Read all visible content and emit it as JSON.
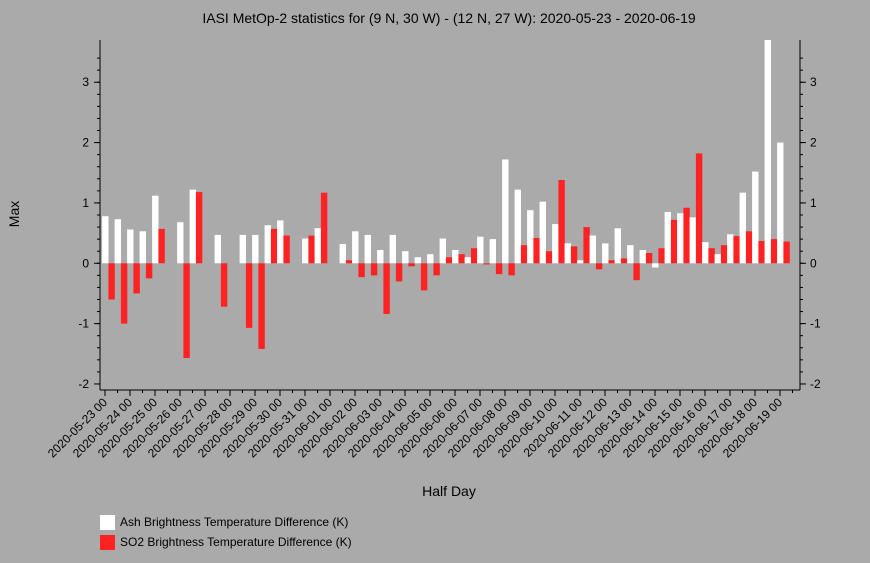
{
  "chart_data": {
    "type": "bar",
    "title": "IASI MetOp-2 statistics for (9 N, 30 W) - (12 N, 27 W): 2020-05-23 - 2020-06-19",
    "xlabel": "Half Day",
    "ylabel": "Max",
    "ylim": [
      -2.1,
      3.7
    ],
    "yticks": [
      -2,
      -1,
      0,
      1,
      2,
      3
    ],
    "x_tick_labels": [
      "2020-05-23 00",
      "2020-05-24 00",
      "2020-05-25 00",
      "2020-05-26 00",
      "2020-05-27 00",
      "2020-05-28 00",
      "2020-05-29 00",
      "2020-05-30 00",
      "2020-05-31 00",
      "2020-06-01 00",
      "2020-06-02 00",
      "2020-06-03 00",
      "2020-06-04 00",
      "2020-06-05 00",
      "2020-06-06 00",
      "2020-06-07 00",
      "2020-06-08 00",
      "2020-06-09 00",
      "2020-06-10 00",
      "2020-06-11 00",
      "2020-06-12 00",
      "2020-06-13 00",
      "2020-06-14 00",
      "2020-06-15 00",
      "2020-06-16 00",
      "2020-06-17 00",
      "2020-06-18 00",
      "2020-06-19 00"
    ],
    "series": [
      {
        "name": "Ash Brightness Temperature Difference (K)",
        "color": "#ffffff",
        "values": [
          0.78,
          0.73,
          0.56,
          0.53,
          1.12,
          null,
          0.68,
          1.22,
          null,
          0.47,
          null,
          0.47,
          0.47,
          0.63,
          0.71,
          null,
          0.41,
          0.58,
          null,
          0.32,
          0.53,
          0.47,
          0.22,
          0.47,
          0.2,
          0.1,
          0.15,
          0.41,
          0.22,
          0.1,
          0.44,
          0.4,
          1.72,
          1.22,
          0.88,
          1.02,
          0.65,
          0.33,
          0.05,
          0.46,
          0.33,
          0.58,
          0.3,
          0.22,
          -0.07,
          0.85,
          0.83,
          0.76,
          0.35,
          0.15,
          0.48,
          1.17,
          1.52,
          3.7,
          2.0
        ]
      },
      {
        "name": "SO2 Brightness Temperature Difference (K)",
        "color": "#ff2222",
        "values": [
          -0.6,
          -1.0,
          -0.5,
          -0.25,
          0.57,
          null,
          -1.57,
          1.18,
          null,
          -0.72,
          null,
          -1.07,
          -1.42,
          0.57,
          0.46,
          null,
          0.46,
          1.17,
          null,
          0.05,
          -0.23,
          -0.2,
          -0.84,
          -0.3,
          -0.05,
          -0.45,
          -0.2,
          0.1,
          0.15,
          0.25,
          -0.02,
          -0.18,
          -0.2,
          0.3,
          0.42,
          0.2,
          1.38,
          0.28,
          0.6,
          -0.1,
          0.05,
          0.08,
          -0.28,
          0.17,
          0.25,
          0.72,
          0.92,
          1.82,
          0.25,
          0.3,
          0.45,
          0.53,
          0.37,
          0.4,
          0.36
        ]
      }
    ],
    "legend": "bottom-left"
  }
}
